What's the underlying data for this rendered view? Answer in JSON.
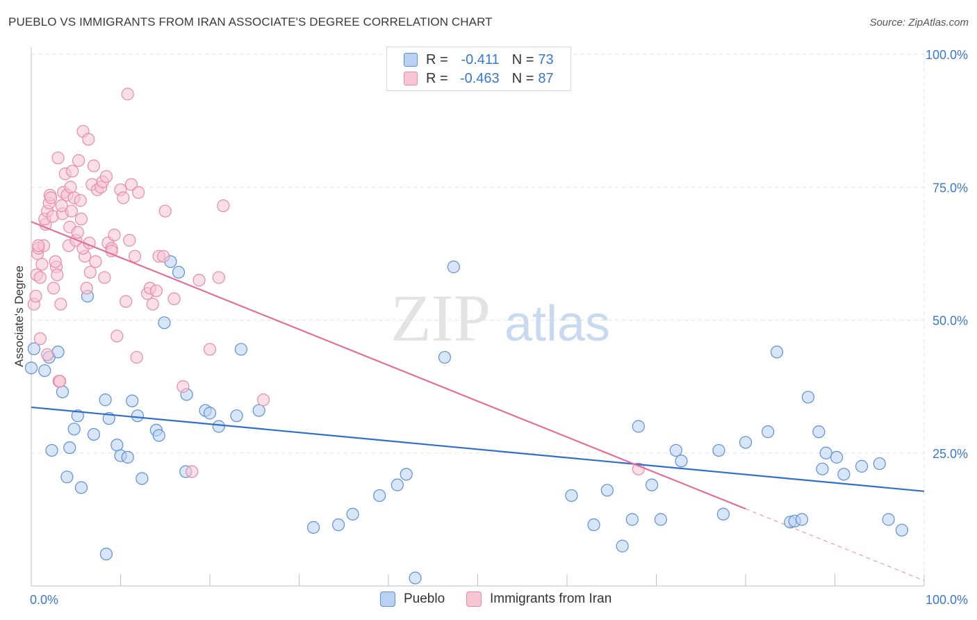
{
  "title": "PUEBLO VS IMMIGRANTS FROM IRAN ASSOCIATE'S DEGREE CORRELATION CHART",
  "source": "Source: ZipAtlas.com",
  "watermark": {
    "zip": "ZIP",
    "atlas": "atlas"
  },
  "legend_top": {
    "r_label": "R =",
    "n_label": "N =",
    "rows": [
      {
        "r": "-0.411",
        "n": "73"
      },
      {
        "r": "-0.463",
        "n": "87"
      }
    ]
  },
  "legend_bottom": [
    "Pueblo",
    "Immigrants from Iran"
  ],
  "chart_data": {
    "type": "scatter",
    "ylabel": "Associate's Degree",
    "xlim": [
      0,
      100
    ],
    "ylim": [
      0,
      100
    ],
    "x_tick_labels": [
      "0.0%",
      "100.0%"
    ],
    "y_tick_labels": [
      "25.0%",
      "50.0%",
      "75.0%",
      "100.0%"
    ],
    "y_ticks": [
      25,
      50,
      75,
      100
    ],
    "grid": true,
    "series": [
      {
        "name": "Pueblo",
        "color": "#5b8fd8",
        "fill": "#b9d1f3",
        "trend": {
          "x0": 0,
          "y0": 33.6,
          "x1": 100,
          "y1": 17.8,
          "color": "#2f6fcc"
        },
        "points": [
          [
            0.3,
            44.6
          ],
          [
            1.5,
            40.5
          ],
          [
            2.0,
            43.0
          ],
          [
            3.0,
            44.0
          ],
          [
            2.3,
            25.5
          ],
          [
            3.5,
            36.5
          ],
          [
            4.0,
            20.5
          ],
          [
            4.3,
            26.0
          ],
          [
            4.8,
            29.5
          ],
          [
            5.2,
            32.0
          ],
          [
            5.6,
            18.5
          ],
          [
            6.3,
            54.5
          ],
          [
            7.0,
            28.5
          ],
          [
            8.3,
            35.0
          ],
          [
            8.7,
            31.5
          ],
          [
            9.6,
            26.5
          ],
          [
            10.0,
            24.5
          ],
          [
            10.8,
            24.2
          ],
          [
            11.3,
            34.8
          ],
          [
            11.9,
            32.0
          ],
          [
            12.4,
            20.2
          ],
          [
            14.0,
            29.3
          ],
          [
            14.3,
            28.3
          ],
          [
            14.9,
            49.5
          ],
          [
            15.6,
            61.0
          ],
          [
            16.5,
            59.0
          ],
          [
            17.3,
            21.5
          ],
          [
            17.4,
            36.0
          ],
          [
            19.5,
            33.0
          ],
          [
            20.0,
            32.5
          ],
          [
            21.0,
            30.0
          ],
          [
            23.0,
            32.0
          ],
          [
            23.5,
            44.5
          ],
          [
            25.5,
            33.0
          ],
          [
            8.4,
            6.0
          ],
          [
            31.6,
            11.0
          ],
          [
            34.4,
            11.5
          ],
          [
            36.0,
            13.5
          ],
          [
            39.0,
            17.0
          ],
          [
            41.0,
            19.0
          ],
          [
            42.0,
            21.0
          ],
          [
            43.0,
            1.5
          ],
          [
            46.3,
            43.0
          ],
          [
            47.3,
            60.0
          ],
          [
            60.5,
            17.0
          ],
          [
            63.0,
            11.5
          ],
          [
            64.5,
            18.0
          ],
          [
            66.2,
            7.5
          ],
          [
            67.3,
            12.5
          ],
          [
            68.0,
            30.0
          ],
          [
            69.5,
            19.0
          ],
          [
            70.5,
            12.5
          ],
          [
            72.2,
            25.5
          ],
          [
            72.8,
            23.5
          ],
          [
            77.0,
            25.5
          ],
          [
            77.5,
            13.5
          ],
          [
            80.0,
            27.0
          ],
          [
            82.5,
            29.0
          ],
          [
            83.5,
            44.0
          ],
          [
            85.0,
            12.0
          ],
          [
            85.5,
            12.2
          ],
          [
            86.3,
            12.5
          ],
          [
            87.0,
            35.5
          ],
          [
            88.2,
            29.0
          ],
          [
            88.6,
            22.0
          ],
          [
            89.0,
            25.0
          ],
          [
            90.2,
            24.2
          ],
          [
            91.0,
            21.0
          ],
          [
            93.0,
            22.5
          ],
          [
            95.0,
            23.0
          ],
          [
            96.0,
            12.5
          ],
          [
            97.5,
            10.5
          ],
          [
            0.0,
            41.0
          ]
        ]
      },
      {
        "name": "Immigrants from Iran",
        "color": "#e68aa8",
        "fill": "#f8c5d4",
        "trend": {
          "x0": 0,
          "y0": 68.5,
          "x1": 80,
          "y1": 14.5,
          "dash_x1": 100,
          "dash_y1": 1.0,
          "color": "#e0709a"
        },
        "points": [
          [
            0.3,
            53.0
          ],
          [
            0.5,
            54.5
          ],
          [
            0.6,
            58.5
          ],
          [
            0.7,
            62.5
          ],
          [
            0.8,
            63.5
          ],
          [
            1.0,
            46.5
          ],
          [
            1.2,
            60.5
          ],
          [
            1.4,
            64.0
          ],
          [
            1.6,
            68.0
          ],
          [
            1.5,
            69.0
          ],
          [
            1.8,
            70.5
          ],
          [
            2.0,
            72.0
          ],
          [
            2.1,
            73.5
          ],
          [
            2.2,
            73.0
          ],
          [
            2.4,
            69.5
          ],
          [
            2.5,
            56.0
          ],
          [
            2.8,
            60.0
          ],
          [
            2.9,
            58.5
          ],
          [
            3.0,
            80.5
          ],
          [
            3.1,
            38.5
          ],
          [
            3.3,
            53.0
          ],
          [
            3.5,
            70.0
          ],
          [
            3.6,
            74.0
          ],
          [
            3.8,
            77.5
          ],
          [
            4.0,
            73.5
          ],
          [
            4.2,
            64.0
          ],
          [
            4.3,
            67.5
          ],
          [
            4.4,
            75.0
          ],
          [
            4.6,
            78.0
          ],
          [
            4.8,
            73.0
          ],
          [
            5.0,
            65.0
          ],
          [
            5.2,
            66.5
          ],
          [
            5.3,
            80.0
          ],
          [
            5.5,
            72.5
          ],
          [
            5.6,
            69.0
          ],
          [
            5.8,
            85.5
          ],
          [
            6.0,
            62.0
          ],
          [
            6.2,
            56.0
          ],
          [
            6.4,
            84.0
          ],
          [
            6.6,
            59.0
          ],
          [
            6.8,
            75.5
          ],
          [
            7.0,
            79.0
          ],
          [
            7.2,
            61.0
          ],
          [
            7.4,
            74.5
          ],
          [
            7.8,
            75.0
          ],
          [
            8.0,
            76.0
          ],
          [
            8.2,
            58.0
          ],
          [
            8.4,
            77.0
          ],
          [
            8.6,
            64.5
          ],
          [
            9.0,
            63.5
          ],
          [
            9.3,
            66.0
          ],
          [
            9.6,
            47.0
          ],
          [
            10.0,
            74.5
          ],
          [
            10.3,
            73.0
          ],
          [
            10.6,
            53.5
          ],
          [
            11.0,
            65.0
          ],
          [
            11.2,
            75.5
          ],
          [
            11.6,
            62.0
          ],
          [
            11.8,
            43.0
          ],
          [
            12.0,
            74.0
          ],
          [
            13.0,
            55.0
          ],
          [
            13.3,
            56.0
          ],
          [
            13.6,
            53.0
          ],
          [
            14.0,
            55.5
          ],
          [
            14.3,
            62.0
          ],
          [
            14.8,
            62.0
          ],
          [
            15.0,
            70.5
          ],
          [
            16.0,
            54.0
          ],
          [
            17.0,
            37.5
          ],
          [
            18.0,
            21.5
          ],
          [
            18.8,
            57.5
          ],
          [
            20.0,
            44.5
          ],
          [
            21.0,
            58.0
          ],
          [
            21.5,
            71.5
          ],
          [
            26.0,
            35.0
          ],
          [
            10.8,
            92.5
          ],
          [
            3.2,
            38.5
          ],
          [
            2.7,
            61.0
          ],
          [
            1.0,
            58.0
          ],
          [
            4.5,
            70.5
          ],
          [
            5.8,
            63.5
          ],
          [
            6.5,
            64.5
          ],
          [
            1.8,
            43.5
          ],
          [
            68.0,
            22.0
          ],
          [
            0.8,
            64.0
          ],
          [
            3.4,
            71.5
          ],
          [
            9.0,
            63.0
          ]
        ]
      }
    ]
  }
}
